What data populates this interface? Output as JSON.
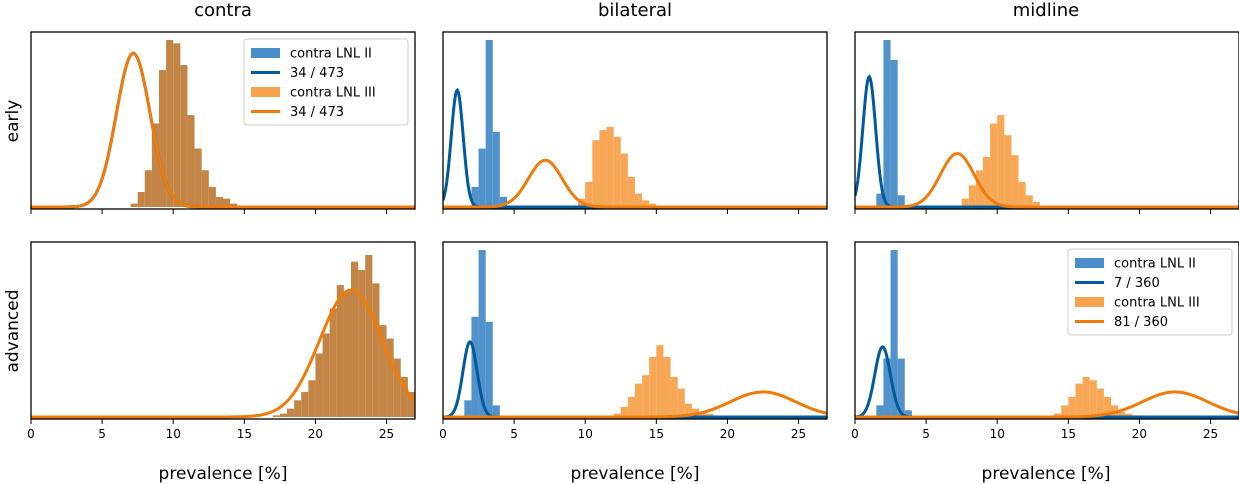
{
  "columns": [
    "contra",
    "bilateral",
    "midline"
  ],
  "rows": [
    "early",
    "advanced"
  ],
  "xlabel": "prevalence [%]",
  "xlim": [
    0,
    27
  ],
  "xticks": [
    0,
    5,
    10,
    15,
    20,
    25
  ],
  "colors": {
    "lnl_ii_hist": "#4a8ec9",
    "lnl_ii_line": "#005b9e",
    "lnl_iii_hist": "#f7a34e",
    "lnl_iii_line": "#f07b0a",
    "overlap_hist": "#c0803e"
  },
  "legends": [
    {
      "panel": "early-contra",
      "position": "top-right",
      "entries": [
        {
          "kind": "hist",
          "color_key": "lnl_ii_hist",
          "label": "contra LNL II"
        },
        {
          "kind": "line",
          "color_key": "lnl_ii_line",
          "label": "34 / 473"
        },
        {
          "kind": "hist",
          "color_key": "lnl_iii_hist",
          "label": "contra LNL III"
        },
        {
          "kind": "line",
          "color_key": "lnl_iii_line",
          "label": "34 / 473"
        }
      ]
    },
    {
      "panel": "advanced-midline",
      "position": "top-right",
      "entries": [
        {
          "kind": "hist",
          "color_key": "lnl_ii_hist",
          "label": "contra LNL II"
        },
        {
          "kind": "line",
          "color_key": "lnl_ii_line",
          "label": "7 / 360"
        },
        {
          "kind": "hist",
          "color_key": "lnl_iii_hist",
          "label": "contra LNL III"
        },
        {
          "kind": "line",
          "color_key": "lnl_iii_line",
          "label": "81 / 360"
        }
      ]
    }
  ],
  "chart_data": [
    {
      "type": "histogram",
      "row": "early",
      "column": "contra",
      "ymax": 1.0,
      "series": [
        {
          "name": "contra LNL II",
          "kind": "hist",
          "color_key": "overlap_hist",
          "bin_width": 0.5,
          "edges_start": 7.0,
          "values": [
            0.02,
            0.09,
            0.22,
            0.5,
            0.82,
            1.0,
            0.98,
            0.85,
            0.55,
            0.35,
            0.22,
            0.12,
            0.06,
            0.05,
            0.02
          ]
        },
        {
          "name": "34 / 473",
          "kind": "curve",
          "color_key": "lnl_ii_line",
          "mu": 7.19,
          "sigma": 1.19,
          "peak": 0.92
        },
        {
          "name": "34 / 473",
          "kind": "curve",
          "color_key": "lnl_iii_line",
          "mu": 7.19,
          "sigma": 1.19,
          "peak": 0.92
        }
      ]
    },
    {
      "type": "histogram",
      "row": "early",
      "column": "bilateral",
      "ymax": 1.0,
      "series": [
        {
          "name": "contra LNL II",
          "kind": "hist",
          "color_key": "lnl_ii_hist",
          "bin_width": 0.5,
          "edges_start": 2.0,
          "values": [
            0.12,
            0.35,
            1.0,
            0.45,
            0.06
          ]
        },
        {
          "name": "contra LNL III",
          "kind": "hist",
          "color_key": "lnl_iii_hist",
          "bin_width": 0.5,
          "edges_start": 9.5,
          "values": [
            0.05,
            0.15,
            0.4,
            0.46,
            0.48,
            0.42,
            0.32,
            0.18,
            0.08,
            0.04,
            0.02
          ]
        },
        {
          "name": "",
          "kind": "curve",
          "color_key": "lnl_ii_line",
          "mu": 1.0,
          "sigma": 0.42,
          "peak": 0.7
        },
        {
          "name": "",
          "kind": "curve",
          "color_key": "lnl_iii_line",
          "mu": 7.19,
          "sigma": 1.19,
          "peak": 0.28
        }
      ]
    },
    {
      "type": "histogram",
      "row": "early",
      "column": "midline",
      "ymax": 1.0,
      "series": [
        {
          "name": "contra LNL II",
          "kind": "hist",
          "color_key": "lnl_ii_hist",
          "bin_width": 0.5,
          "edges_start": 1.5,
          "values": [
            0.08,
            1.0,
            0.88,
            0.07
          ]
        },
        {
          "name": "contra LNL III",
          "kind": "hist",
          "color_key": "lnl_iii_hist",
          "bin_width": 0.5,
          "edges_start": 7.5,
          "values": [
            0.05,
            0.13,
            0.22,
            0.3,
            0.5,
            0.55,
            0.43,
            0.31,
            0.15,
            0.07,
            0.03
          ]
        },
        {
          "name": "",
          "kind": "curve",
          "color_key": "lnl_ii_line",
          "mu": 1.0,
          "sigma": 0.45,
          "peak": 0.78
        },
        {
          "name": "",
          "kind": "curve",
          "color_key": "lnl_iii_line",
          "mu": 7.19,
          "sigma": 1.19,
          "peak": 0.32
        }
      ]
    },
    {
      "type": "histogram",
      "row": "advanced",
      "column": "contra",
      "ymax": 1.0,
      "series": [
        {
          "name": "contra LNL II",
          "kind": "hist",
          "color_key": "overlap_hist",
          "bin_width": 0.5,
          "edges_start": 17.0,
          "values": [
            0.01,
            0.02,
            0.05,
            0.1,
            0.15,
            0.22,
            0.38,
            0.5,
            0.65,
            0.79,
            0.75,
            0.93,
            0.88,
            0.97,
            0.8,
            0.55,
            0.47,
            0.35,
            0.24,
            0.15
          ]
        },
        {
          "name": "",
          "kind": "curve",
          "color_key": "lnl_iii_line",
          "mu": 22.5,
          "sigma": 2.2,
          "peak": 0.76
        }
      ]
    },
    {
      "type": "histogram",
      "row": "advanced",
      "column": "bilateral",
      "ymax": 1.0,
      "series": [
        {
          "name": "contra LNL II",
          "kind": "hist",
          "color_key": "lnl_ii_hist",
          "bin_width": 0.5,
          "edges_start": 1.5,
          "values": [
            0.1,
            0.6,
            1.0,
            0.57,
            0.07
          ]
        },
        {
          "name": "contra LNL III",
          "kind": "hist",
          "color_key": "lnl_iii_hist",
          "bin_width": 0.5,
          "edges_start": 12.0,
          "values": [
            0.02,
            0.06,
            0.12,
            0.2,
            0.25,
            0.36,
            0.43,
            0.36,
            0.24,
            0.17,
            0.08,
            0.05,
            0.03,
            0.02
          ]
        },
        {
          "name": "",
          "kind": "curve",
          "color_key": "lnl_ii_line",
          "mu": 1.9,
          "sigma": 0.5,
          "peak": 0.45
        },
        {
          "name": "",
          "kind": "curve",
          "color_key": "lnl_iii_line",
          "mu": 22.5,
          "sigma": 2.3,
          "peak": 0.15
        }
      ]
    },
    {
      "type": "histogram",
      "row": "advanced",
      "column": "midline",
      "ymax": 1.0,
      "series": [
        {
          "name": "contra LNL II",
          "kind": "hist",
          "color_key": "lnl_ii_hist",
          "bin_width": 0.5,
          "edges_start": 1.5,
          "values": [
            0.07,
            0.35,
            1.0,
            0.35,
            0.04
          ]
        },
        {
          "name": "contra LNL III",
          "kind": "hist",
          "color_key": "lnl_iii_hist",
          "bin_width": 0.5,
          "edges_start": 14.0,
          "values": [
            0.02,
            0.07,
            0.12,
            0.2,
            0.24,
            0.22,
            0.17,
            0.12,
            0.07,
            0.03,
            0.02,
            0.01,
            0.005
          ]
        },
        {
          "name": "7 / 360",
          "kind": "curve",
          "color_key": "lnl_ii_line",
          "mu": 1.94,
          "sigma": 0.55,
          "peak": 0.42
        },
        {
          "name": "81 / 360",
          "kind": "curve",
          "color_key": "lnl_iii_line",
          "mu": 22.5,
          "sigma": 2.3,
          "peak": 0.15
        }
      ]
    }
  ]
}
